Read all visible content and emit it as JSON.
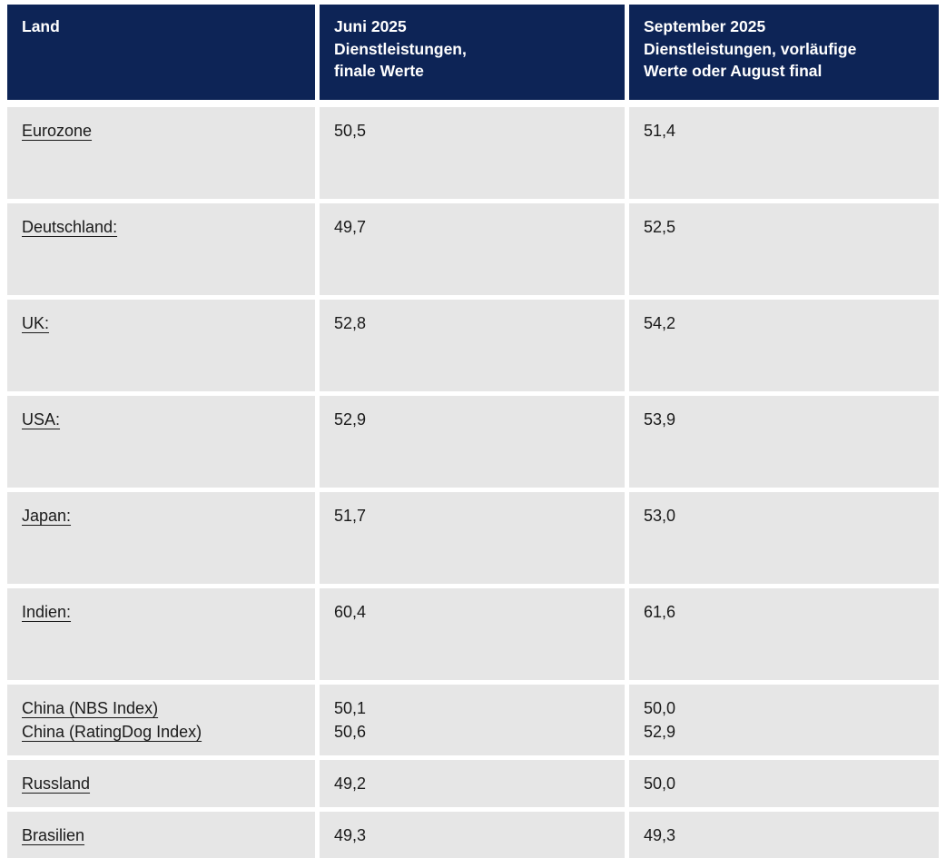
{
  "table": {
    "columns": {
      "land": "Land",
      "juni": "Juni 2025\nDienstleistungen,\nfinale Werte",
      "september": "September 2025\nDienstleistungen, vorläufige\nWerte oder August final"
    },
    "rows": [
      {
        "land": "Eurozone",
        "juni": "50,5",
        "september": "51,4"
      },
      {
        "land": "Deutschland:",
        "juni": "49,7",
        "september": "52,5"
      },
      {
        "land": "UK:",
        "juni": "52,8",
        "september": "54,2"
      },
      {
        "land": "USA:",
        "juni": "52,9",
        "september": "53,9"
      },
      {
        "land": "Japan:",
        "juni": "51,7",
        "september": "53,0"
      },
      {
        "land": "Indien:",
        "juni": "60,4",
        "september": "61,6"
      },
      {
        "land": "China (NBS Index)\nChina (RatingDog Index)",
        "juni": "50,1\n50,6",
        "september": "50,0\n52,9"
      },
      {
        "land": "Russland",
        "juni": "49,2",
        "september": "50,0"
      },
      {
        "land": "Brasilien",
        "juni": "49,3",
        "september": "49,3"
      }
    ]
  },
  "colors": {
    "header_bg": "#0d2456",
    "header_text": "#ffffff",
    "row_bg": "#e6e6e6",
    "gutter": "#ffffff",
    "body_text": "#1a1a1a"
  }
}
